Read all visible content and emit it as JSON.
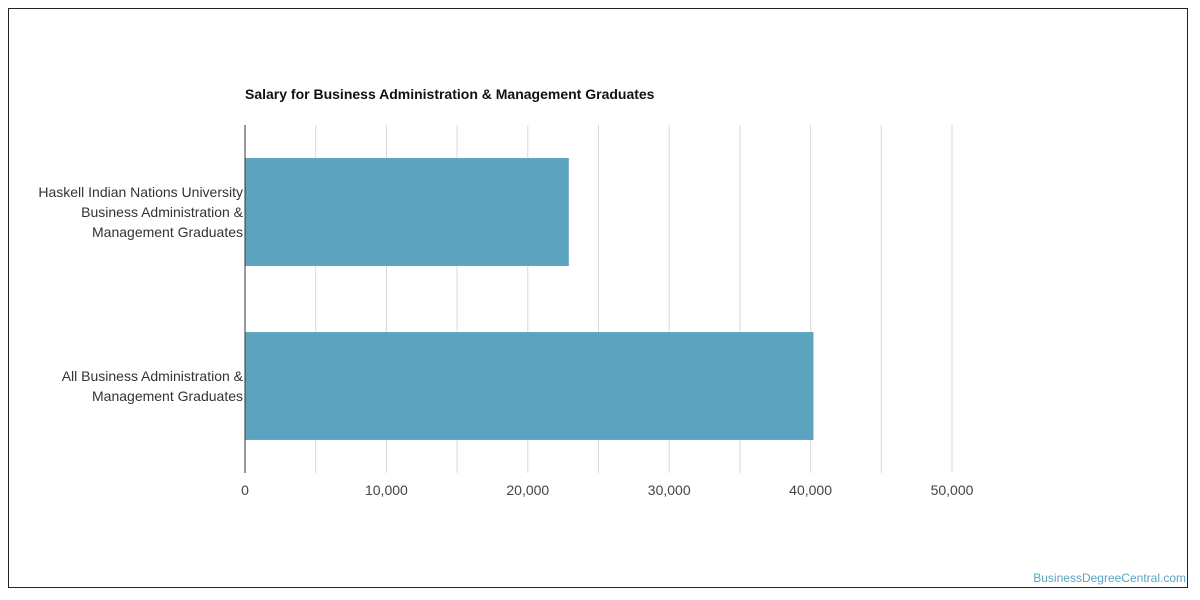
{
  "chart_data": {
    "type": "bar",
    "orientation": "horizontal",
    "title": "Salary for Business Administration & Management Graduates",
    "categories": [
      [
        "Haskell Indian Nations University",
        "Business Administration &",
        "Management Graduates"
      ],
      [
        "All Business Administration &",
        "Management Graduates"
      ]
    ],
    "values": [
      22900,
      40200
    ],
    "xlim": [
      0,
      50000
    ],
    "x_ticks": [
      "0",
      "10,000",
      "20,000",
      "30,000",
      "40,000",
      "50,000"
    ],
    "grid": "vertical",
    "bar_color": "#5ba3bf"
  },
  "footer": {
    "watermark": "BusinessDegreeCentral.com"
  }
}
